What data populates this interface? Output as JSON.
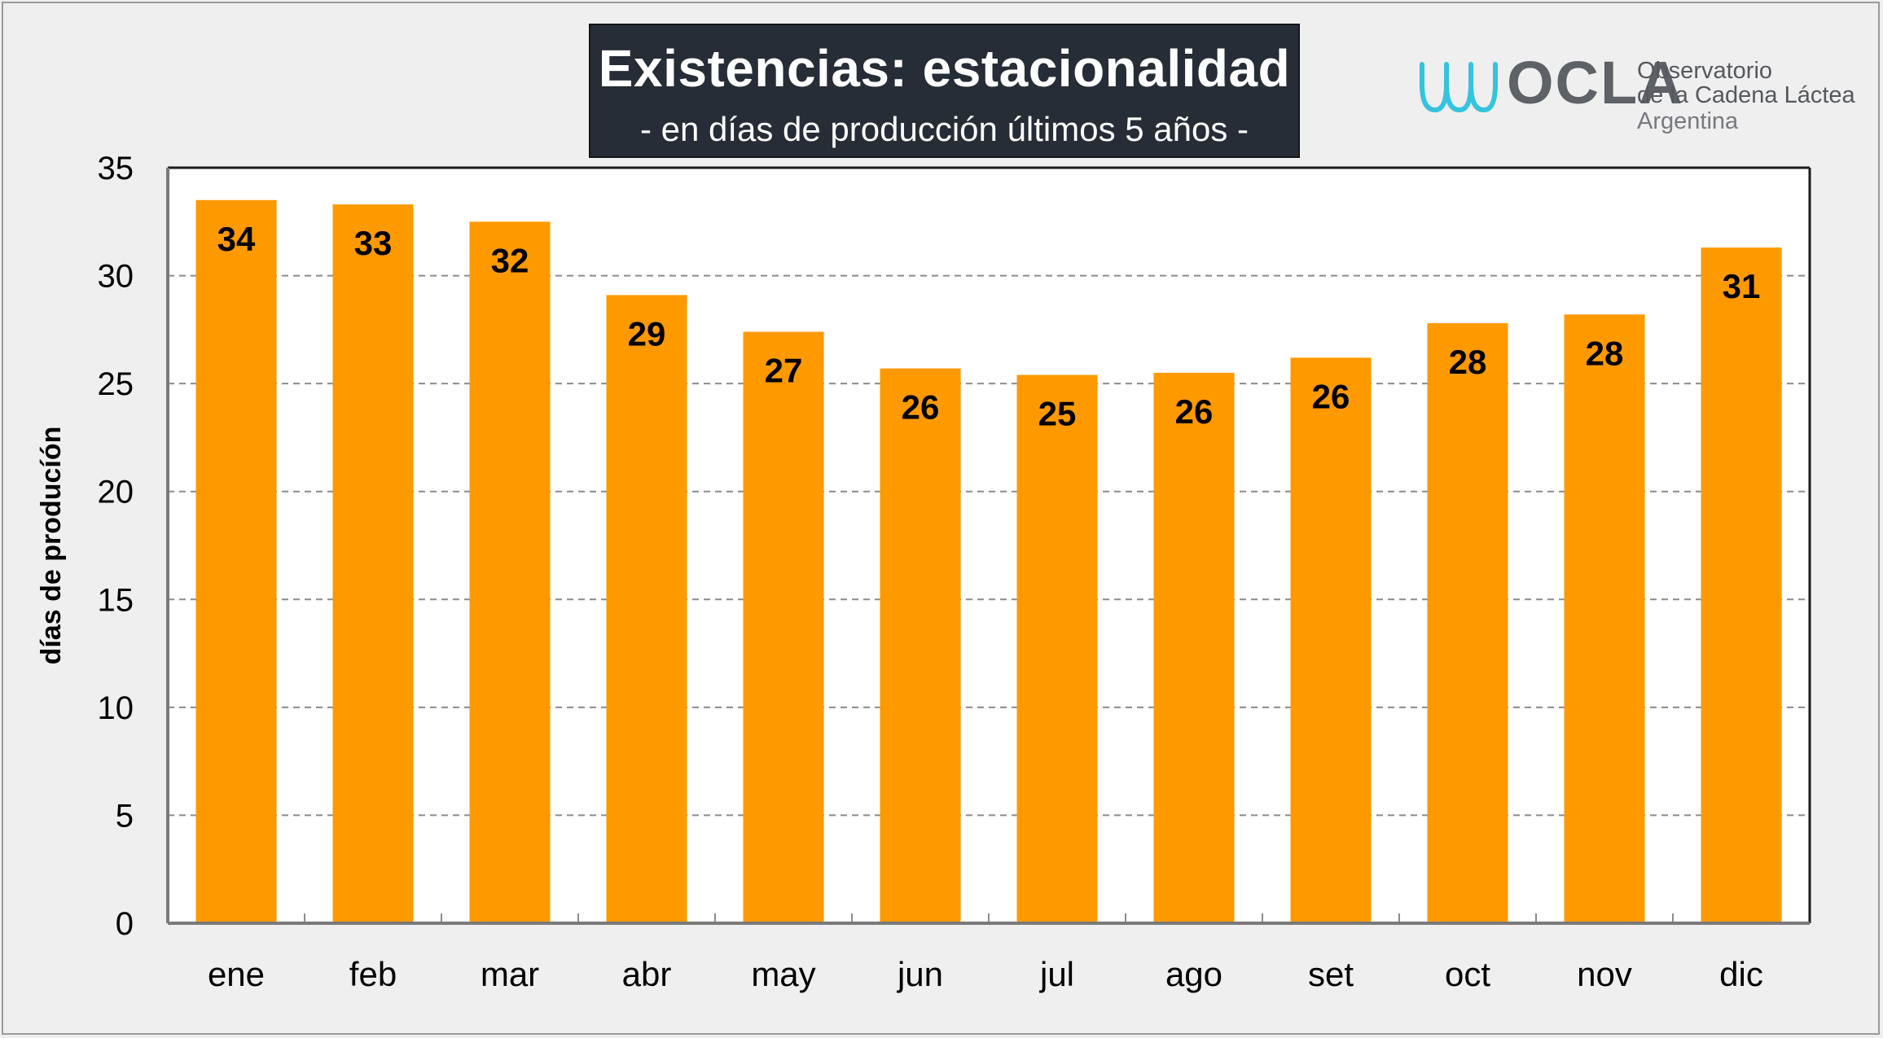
{
  "chart_data": {
    "type": "bar",
    "title": "Existencias: estacionalidad",
    "subtitle": "- en días de producción  últimos 5 años -",
    "ylabel": "días de producíón",
    "xlabel": "",
    "categories": [
      "ene",
      "feb",
      "mar",
      "abr",
      "may",
      "jun",
      "jul",
      "ago",
      "set",
      "oct",
      "nov",
      "dic"
    ],
    "values": [
      33.5,
      33.3,
      32.5,
      29.1,
      27.4,
      25.7,
      25.4,
      25.5,
      26.2,
      27.8,
      28.2,
      31.3
    ],
    "data_labels": [
      "34",
      "33",
      "32",
      "29",
      "27",
      "26",
      "25",
      "26",
      "26",
      "28",
      "28",
      "31"
    ],
    "ylim": [
      0,
      35
    ],
    "yticks": [
      0,
      5,
      10,
      15,
      20,
      25,
      30,
      35
    ],
    "grid": true,
    "bar_color": "#ff9900"
  },
  "logo": {
    "name": "OCLA",
    "line1": "Observatorio",
    "line2": "de la Cadena Láctea",
    "line3": "Argentina",
    "wave_color": "#35c3de"
  }
}
